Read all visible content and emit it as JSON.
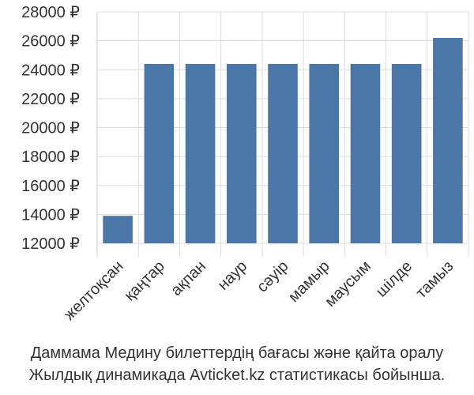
{
  "chart_data": {
    "type": "bar",
    "categories": [
      "желтоқсан",
      "қаңтар",
      "ақпан",
      "наур",
      "сәуір",
      "мамыр",
      "маусым",
      "шілде",
      "тамыз"
    ],
    "values": [
      13900,
      24400,
      24400,
      24400,
      24400,
      24400,
      24400,
      24400,
      26200
    ],
    "y_ticks": [
      "12000 ₽",
      "14000 ₽",
      "16000 ₽",
      "18000 ₽",
      "20000 ₽",
      "22000 ₽",
      "24000 ₽",
      "26000 ₽",
      "28000 ₽"
    ],
    "ylim": [
      12000,
      28000
    ],
    "grid": true,
    "bar_color": "#4a76a8",
    "caption": [
      "Даммама Медину билеттердің бағасы және қайта оралу",
      "Жылдық динамикада Avticket.kz статистикасы бойынша."
    ]
  }
}
